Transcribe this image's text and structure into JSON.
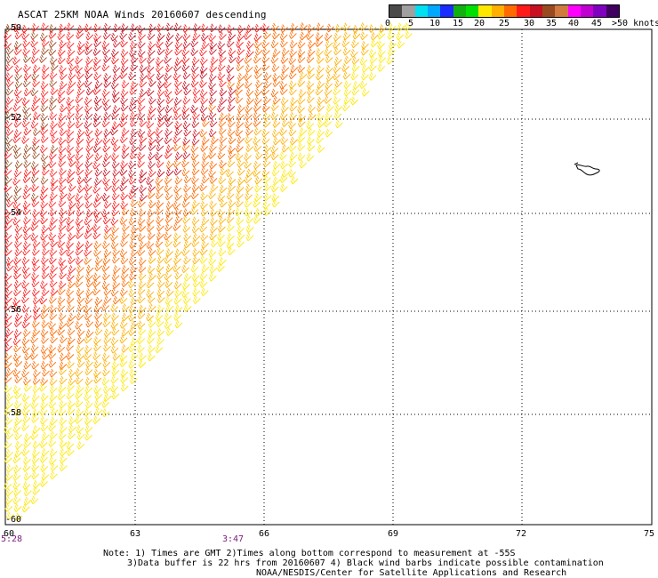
{
  "title": "ASCAT 25KM NOAA Winds 20160607 descending",
  "legend": {
    "colors": [
      "#4a4a4a",
      "#a0a0a0",
      "#00e0f0",
      "#00a8ff",
      "#1a2cff",
      "#10b010",
      "#00e000",
      "#ffe800",
      "#ffb000",
      "#ff6a00",
      "#ff1a1a",
      "#c81020",
      "#9a4a20",
      "#d07a40",
      "#ff00ff",
      "#c000d0",
      "#8000c0",
      "#400060"
    ],
    "labels": [
      "0",
      "5",
      "10",
      "15",
      "20",
      "25",
      "30",
      "35",
      "40",
      "45",
      ">50 knots"
    ]
  },
  "latitude_labels": [
    "-50",
    "-52",
    "-54",
    "-56",
    "-58",
    "-60"
  ],
  "longitude_labels": [
    "60",
    "63",
    "66",
    "69",
    "72",
    "75"
  ],
  "times": [
    "5:28",
    "3:47"
  ],
  "notes": {
    "line1": "Note: 1) Times are GMT 2)Times along bottom correspond to measurement at -55S",
    "line2": "3)Data buffer is 22 hrs from 20160607 4) Black wind barbs indicate possible contamination",
    "line3": "NOAA/NESDIS/Center for Satellite Applications and Research"
  },
  "icons": [
    "island-outline-icon"
  ]
}
